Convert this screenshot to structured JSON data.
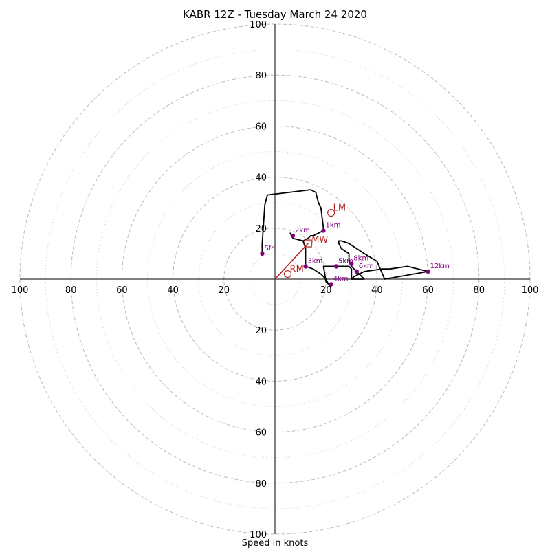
{
  "chart_data": {
    "type": "line",
    "title": "KABR 12Z - Tuesday March 24 2020",
    "xlabel": "Speed in knots",
    "ylabel": "",
    "xlim": [
      -100,
      100
    ],
    "ylim": [
      -100,
      100
    ],
    "ring_ticks": [
      20,
      40,
      60,
      80,
      100
    ],
    "tick_labels": [
      "100",
      "80",
      "60",
      "40",
      "20",
      "20",
      "40",
      "60",
      "80",
      "100"
    ],
    "grid": true,
    "colors": {
      "trace": "#000000",
      "height_marker": "#800080",
      "storm_motion": "#b22222",
      "ring_major": "#bbbbbb",
      "ring_minor": "#cccccc"
    },
    "hodograph_trace": [
      [
        -5,
        10
      ],
      [
        -5,
        14
      ],
      [
        -4,
        29
      ],
      [
        -3,
        33
      ],
      [
        14,
        35
      ],
      [
        16,
        34
      ],
      [
        17,
        30
      ],
      [
        18,
        28
      ],
      [
        19,
        20
      ],
      [
        19,
        19
      ],
      [
        17,
        18
      ],
      [
        15,
        17
      ],
      [
        14,
        17
      ],
      [
        13,
        16
      ],
      [
        11,
        15
      ],
      [
        7,
        16
      ],
      [
        7,
        17
      ],
      [
        6,
        18
      ],
      [
        7,
        16
      ],
      [
        11,
        15
      ],
      [
        12,
        12
      ],
      [
        12,
        5
      ],
      [
        15,
        4
      ],
      [
        18,
        2
      ],
      [
        20,
        0
      ],
      [
        21,
        -2
      ],
      [
        22,
        -3
      ],
      [
        20,
        -1
      ],
      [
        19,
        5
      ],
      [
        23,
        5
      ],
      [
        26,
        5
      ],
      [
        29,
        5
      ],
      [
        30,
        4
      ],
      [
        30,
        2
      ],
      [
        30,
        0
      ],
      [
        31,
        1
      ],
      [
        33,
        2
      ],
      [
        35,
        3
      ],
      [
        42,
        4
      ],
      [
        45,
        4
      ],
      [
        52,
        5
      ],
      [
        60,
        3
      ],
      [
        43,
        0
      ],
      [
        40,
        7
      ],
      [
        35,
        10
      ],
      [
        29,
        14
      ],
      [
        26,
        15
      ],
      [
        25,
        15
      ],
      [
        25,
        14
      ],
      [
        26,
        12
      ],
      [
        29,
        10
      ],
      [
        29,
        7
      ],
      [
        30,
        5
      ],
      [
        31,
        4
      ],
      [
        32,
        3
      ],
      [
        34,
        1
      ],
      [
        35,
        0
      ],
      [
        31,
        0
      ],
      [
        30,
        0
      ]
    ],
    "height_points": [
      {
        "label": "Sfc",
        "u": -5,
        "v": 10
      },
      {
        "label": "1km",
        "u": 19,
        "v": 19
      },
      {
        "label": "2km",
        "u": 7,
        "v": 17
      },
      {
        "label": "3km",
        "u": 12,
        "v": 5
      },
      {
        "label": "4km",
        "u": 22,
        "v": -2
      },
      {
        "label": "5km",
        "u": 24,
        "v": 5
      },
      {
        "label": "6km",
        "u": 32,
        "v": 3
      },
      {
        "label": "8km",
        "u": 30,
        "v": 6
      },
      {
        "label": "12km",
        "u": 60,
        "v": 3
      }
    ],
    "storm_motion": {
      "mean_wind": {
        "label": "MW",
        "u": 13,
        "v": 14
      },
      "left_mover": {
        "label": "LM",
        "u": 22,
        "v": 26
      },
      "right_mover": {
        "label": "RM",
        "u": 5,
        "v": 2
      }
    }
  }
}
